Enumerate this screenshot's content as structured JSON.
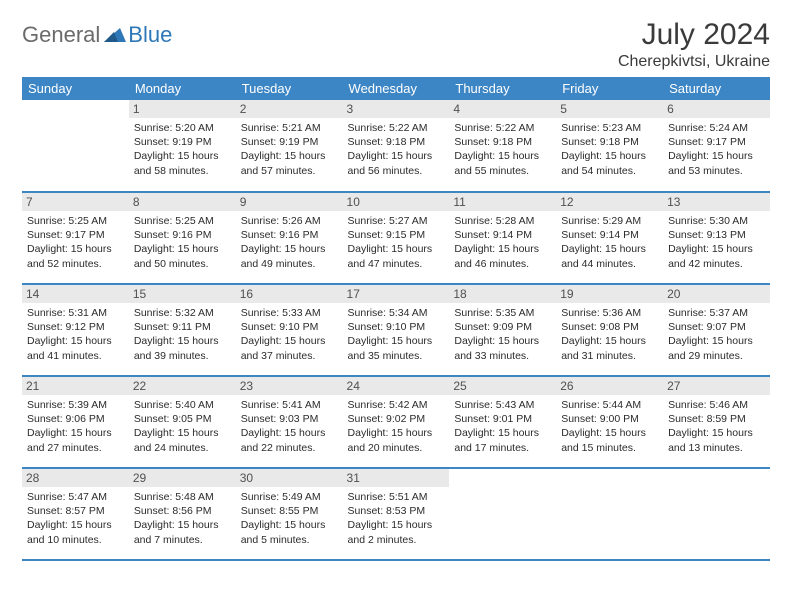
{
  "brand": {
    "part1": "General",
    "part2": "Blue"
  },
  "title": "July 2024",
  "location": "Cherepkivtsi, Ukraine",
  "colors": {
    "header_bg": "#3d86c6",
    "header_text": "#ffffff",
    "daynum_bg": "#e9e9e9",
    "border": "#3d86c6",
    "logo_gray": "#6b6b6b",
    "logo_blue": "#2f78b7"
  },
  "weekdays": [
    "Sunday",
    "Monday",
    "Tuesday",
    "Wednesday",
    "Thursday",
    "Friday",
    "Saturday"
  ],
  "weeks": [
    [
      {
        "day": "",
        "lines": []
      },
      {
        "day": "1",
        "lines": [
          "Sunrise: 5:20 AM",
          "Sunset: 9:19 PM",
          "Daylight: 15 hours and 58 minutes."
        ]
      },
      {
        "day": "2",
        "lines": [
          "Sunrise: 5:21 AM",
          "Sunset: 9:19 PM",
          "Daylight: 15 hours and 57 minutes."
        ]
      },
      {
        "day": "3",
        "lines": [
          "Sunrise: 5:22 AM",
          "Sunset: 9:18 PM",
          "Daylight: 15 hours and 56 minutes."
        ]
      },
      {
        "day": "4",
        "lines": [
          "Sunrise: 5:22 AM",
          "Sunset: 9:18 PM",
          "Daylight: 15 hours and 55 minutes."
        ]
      },
      {
        "day": "5",
        "lines": [
          "Sunrise: 5:23 AM",
          "Sunset: 9:18 PM",
          "Daylight: 15 hours and 54 minutes."
        ]
      },
      {
        "day": "6",
        "lines": [
          "Sunrise: 5:24 AM",
          "Sunset: 9:17 PM",
          "Daylight: 15 hours and 53 minutes."
        ]
      }
    ],
    [
      {
        "day": "7",
        "lines": [
          "Sunrise: 5:25 AM",
          "Sunset: 9:17 PM",
          "Daylight: 15 hours and 52 minutes."
        ]
      },
      {
        "day": "8",
        "lines": [
          "Sunrise: 5:25 AM",
          "Sunset: 9:16 PM",
          "Daylight: 15 hours and 50 minutes."
        ]
      },
      {
        "day": "9",
        "lines": [
          "Sunrise: 5:26 AM",
          "Sunset: 9:16 PM",
          "Daylight: 15 hours and 49 minutes."
        ]
      },
      {
        "day": "10",
        "lines": [
          "Sunrise: 5:27 AM",
          "Sunset: 9:15 PM",
          "Daylight: 15 hours and 47 minutes."
        ]
      },
      {
        "day": "11",
        "lines": [
          "Sunrise: 5:28 AM",
          "Sunset: 9:14 PM",
          "Daylight: 15 hours and 46 minutes."
        ]
      },
      {
        "day": "12",
        "lines": [
          "Sunrise: 5:29 AM",
          "Sunset: 9:14 PM",
          "Daylight: 15 hours and 44 minutes."
        ]
      },
      {
        "day": "13",
        "lines": [
          "Sunrise: 5:30 AM",
          "Sunset: 9:13 PM",
          "Daylight: 15 hours and 42 minutes."
        ]
      }
    ],
    [
      {
        "day": "14",
        "lines": [
          "Sunrise: 5:31 AM",
          "Sunset: 9:12 PM",
          "Daylight: 15 hours and 41 minutes."
        ]
      },
      {
        "day": "15",
        "lines": [
          "Sunrise: 5:32 AM",
          "Sunset: 9:11 PM",
          "Daylight: 15 hours and 39 minutes."
        ]
      },
      {
        "day": "16",
        "lines": [
          "Sunrise: 5:33 AM",
          "Sunset: 9:10 PM",
          "Daylight: 15 hours and 37 minutes."
        ]
      },
      {
        "day": "17",
        "lines": [
          "Sunrise: 5:34 AM",
          "Sunset: 9:10 PM",
          "Daylight: 15 hours and 35 minutes."
        ]
      },
      {
        "day": "18",
        "lines": [
          "Sunrise: 5:35 AM",
          "Sunset: 9:09 PM",
          "Daylight: 15 hours and 33 minutes."
        ]
      },
      {
        "day": "19",
        "lines": [
          "Sunrise: 5:36 AM",
          "Sunset: 9:08 PM",
          "Daylight: 15 hours and 31 minutes."
        ]
      },
      {
        "day": "20",
        "lines": [
          "Sunrise: 5:37 AM",
          "Sunset: 9:07 PM",
          "Daylight: 15 hours and 29 minutes."
        ]
      }
    ],
    [
      {
        "day": "21",
        "lines": [
          "Sunrise: 5:39 AM",
          "Sunset: 9:06 PM",
          "Daylight: 15 hours and 27 minutes."
        ]
      },
      {
        "day": "22",
        "lines": [
          "Sunrise: 5:40 AM",
          "Sunset: 9:05 PM",
          "Daylight: 15 hours and 24 minutes."
        ]
      },
      {
        "day": "23",
        "lines": [
          "Sunrise: 5:41 AM",
          "Sunset: 9:03 PM",
          "Daylight: 15 hours and 22 minutes."
        ]
      },
      {
        "day": "24",
        "lines": [
          "Sunrise: 5:42 AM",
          "Sunset: 9:02 PM",
          "Daylight: 15 hours and 20 minutes."
        ]
      },
      {
        "day": "25",
        "lines": [
          "Sunrise: 5:43 AM",
          "Sunset: 9:01 PM",
          "Daylight: 15 hours and 17 minutes."
        ]
      },
      {
        "day": "26",
        "lines": [
          "Sunrise: 5:44 AM",
          "Sunset: 9:00 PM",
          "Daylight: 15 hours and 15 minutes."
        ]
      },
      {
        "day": "27",
        "lines": [
          "Sunrise: 5:46 AM",
          "Sunset: 8:59 PM",
          "Daylight: 15 hours and 13 minutes."
        ]
      }
    ],
    [
      {
        "day": "28",
        "lines": [
          "Sunrise: 5:47 AM",
          "Sunset: 8:57 PM",
          "Daylight: 15 hours and 10 minutes."
        ]
      },
      {
        "day": "29",
        "lines": [
          "Sunrise: 5:48 AM",
          "Sunset: 8:56 PM",
          "Daylight: 15 hours and 7 minutes."
        ]
      },
      {
        "day": "30",
        "lines": [
          "Sunrise: 5:49 AM",
          "Sunset: 8:55 PM",
          "Daylight: 15 hours and 5 minutes."
        ]
      },
      {
        "day": "31",
        "lines": [
          "Sunrise: 5:51 AM",
          "Sunset: 8:53 PM",
          "Daylight: 15 hours and 2 minutes."
        ]
      },
      {
        "day": "",
        "lines": []
      },
      {
        "day": "",
        "lines": []
      },
      {
        "day": "",
        "lines": []
      }
    ]
  ]
}
